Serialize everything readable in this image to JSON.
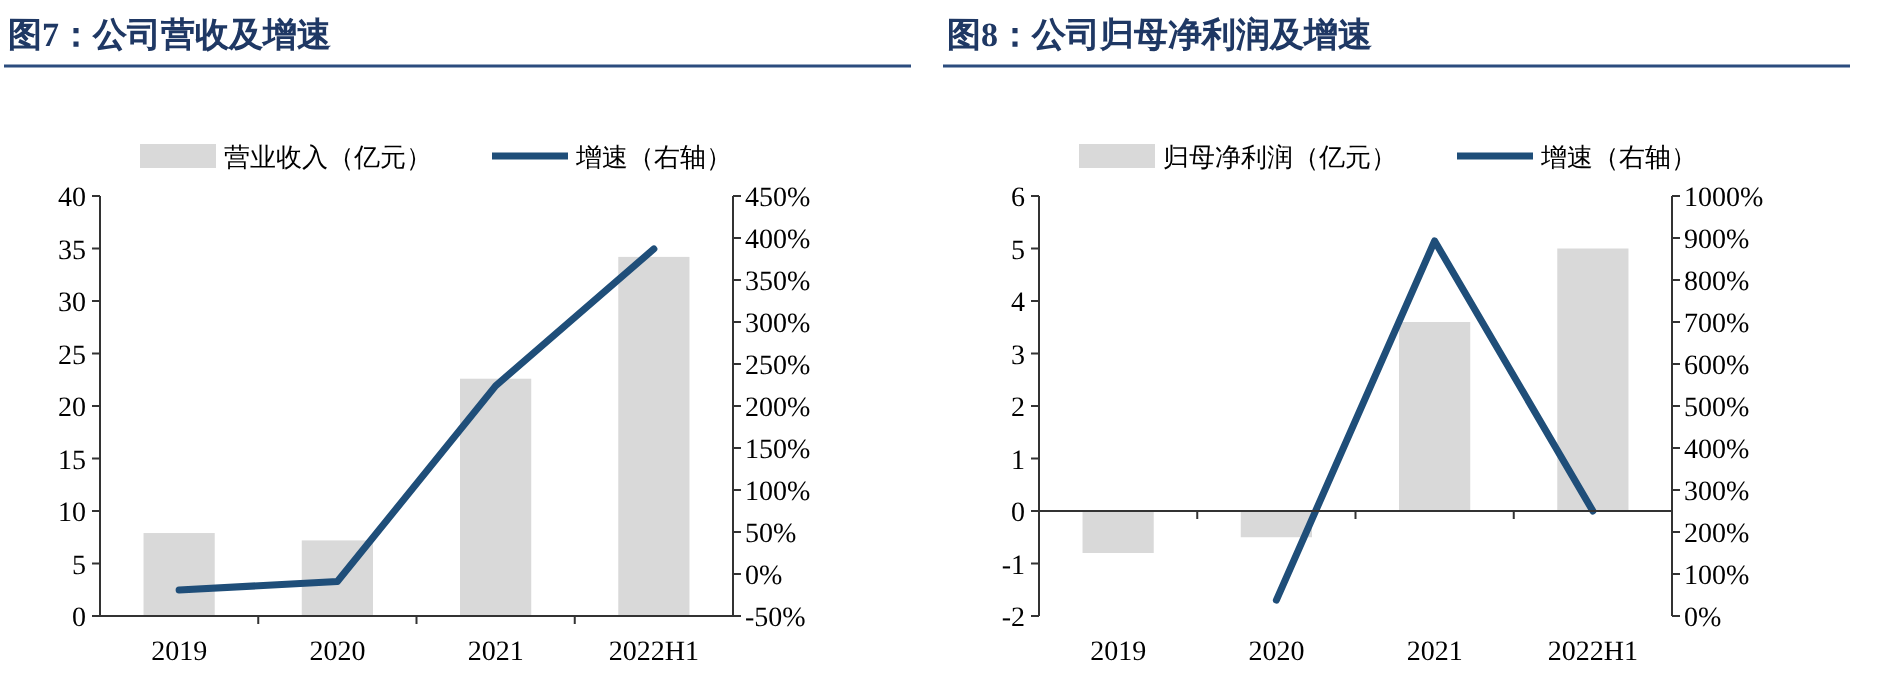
{
  "chart_data": [
    {
      "type": "bar",
      "title": "图7：公司营收及增速",
      "categories": [
        "2019",
        "2020",
        "2021",
        "2022H1"
      ],
      "legend": "top",
      "series": [
        {
          "name": "营业收入（亿元）",
          "color": "#d9d9d9",
          "values": [
            7.9,
            7.2,
            22.6,
            34.2
          ]
        },
        {
          "name": "增速（右轴）",
          "type": "line",
          "axis": "y2",
          "color": "#1f4e79",
          "values": [
            -19,
            -9,
            224,
            387
          ]
        }
      ],
      "ylim": [
        0,
        40
      ],
      "yticks": [
        0,
        5,
        10,
        15,
        20,
        25,
        30,
        35,
        40
      ],
      "y2lim": [
        -50,
        450
      ],
      "y2ticks": [
        {
          "value": -50,
          "label": "-50%"
        },
        {
          "value": 0,
          "label": "0%"
        },
        {
          "value": 50,
          "label": "50%"
        },
        {
          "value": 100,
          "label": "100%"
        },
        {
          "value": 150,
          "label": "150%"
        },
        {
          "value": 200,
          "label": "200%"
        },
        {
          "value": 250,
          "label": "250%"
        },
        {
          "value": 300,
          "label": "300%"
        },
        {
          "value": 350,
          "label": "350%"
        },
        {
          "value": 400,
          "label": "400%"
        },
        {
          "value": 450,
          "label": "450%"
        }
      ]
    },
    {
      "type": "bar",
      "title": "图8：公司归母净利润及增速",
      "categories": [
        "2019",
        "2020",
        "2021",
        "2022H1"
      ],
      "legend": "top",
      "series": [
        {
          "name": "归母净利润（亿元）",
          "color": "#d9d9d9",
          "values": [
            -0.8,
            -0.5,
            3.6,
            5.0
          ]
        },
        {
          "name": "增速（右轴）",
          "type": "line",
          "axis": "y2",
          "color": "#1f4e79",
          "values": [
            null,
            38,
            893,
            250
          ]
        }
      ],
      "ylim": [
        -2,
        6
      ],
      "yticks": [
        -2,
        -1,
        0,
        1,
        2,
        3,
        4,
        5,
        6
      ],
      "y2lim": [
        0,
        1000
      ],
      "y2ticks": [
        {
          "value": 0,
          "label": "0%"
        },
        {
          "value": 100,
          "label": "100%"
        },
        {
          "value": 200,
          "label": "200%"
        },
        {
          "value": 300,
          "label": "300%"
        },
        {
          "value": 400,
          "label": "400%"
        },
        {
          "value": 500,
          "label": "500%"
        },
        {
          "value": 600,
          "label": "600%"
        },
        {
          "value": 700,
          "label": "700%"
        },
        {
          "value": 800,
          "label": "800%"
        },
        {
          "value": 900,
          "label": "900%"
        },
        {
          "value": 1000,
          "label": "1000%"
        }
      ]
    }
  ]
}
